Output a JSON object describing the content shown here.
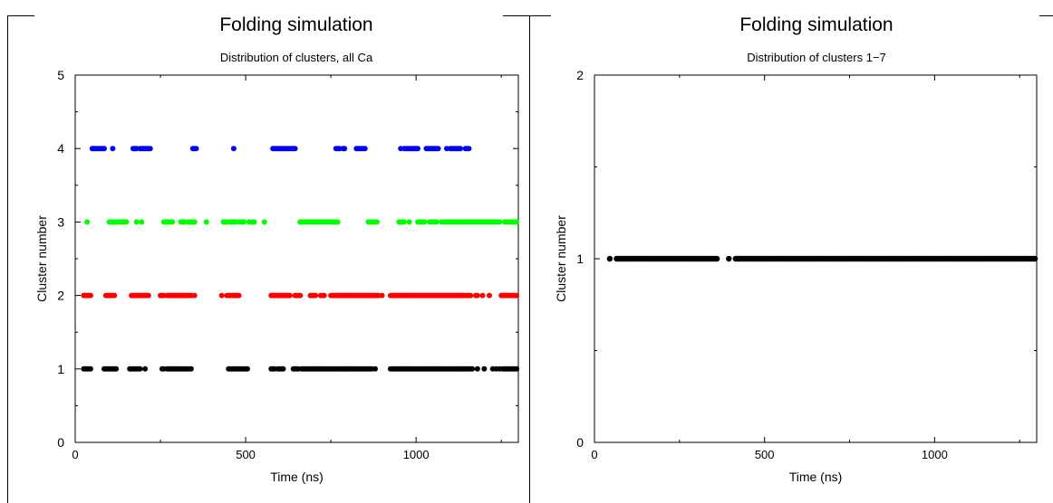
{
  "chart_data": [
    {
      "type": "scatter",
      "title": "Folding simulation",
      "subtitle": "Distribution of clusters, all Ca",
      "xlabel": "Time (ns)",
      "ylabel": "Cluster number",
      "xlim": [
        0,
        1300
      ],
      "ylim": [
        0,
        5
      ],
      "xticks": [
        0,
        500,
        1000
      ],
      "yticks": [
        0,
        1,
        2,
        3,
        4,
        5
      ],
      "grid": false,
      "legend": "none",
      "series": [
        {
          "color": "#000000",
          "y": 1,
          "x": [
            25,
            30,
            35,
            40,
            45,
            85,
            90,
            95,
            100,
            105,
            110,
            115,
            120,
            160,
            165,
            170,
            175,
            180,
            185,
            190,
            205,
            255,
            260,
            270,
            275,
            280,
            285,
            290,
            295,
            300,
            305,
            310,
            315,
            320,
            325,
            330,
            335,
            340,
            450,
            455,
            460,
            465,
            470,
            475,
            480,
            485,
            490,
            495,
            500,
            505,
            575,
            580,
            585,
            595,
            600,
            605,
            610,
            640,
            645,
            650,
            655,
            665,
            670,
            675,
            680,
            685,
            690,
            695,
            700,
            705,
            710,
            715,
            720,
            725,
            730,
            735,
            740,
            745,
            750,
            755,
            760,
            765,
            770,
            775,
            780,
            785,
            790,
            795,
            800,
            805,
            810,
            815,
            820,
            825,
            830,
            835,
            840,
            845,
            850,
            855,
            860,
            865,
            870,
            880,
            925,
            930,
            935,
            940,
            945,
            950,
            955,
            960,
            965,
            970,
            975,
            980,
            985,
            990,
            995,
            1000,
            1005,
            1010,
            1015,
            1020,
            1025,
            1030,
            1035,
            1040,
            1045,
            1050,
            1055,
            1060,
            1065,
            1070,
            1075,
            1080,
            1085,
            1090,
            1095,
            1100,
            1105,
            1110,
            1115,
            1120,
            1125,
            1130,
            1135,
            1140,
            1145,
            1150,
            1155,
            1160,
            1165,
            1180,
            1200,
            1225,
            1235,
            1245,
            1255,
            1260,
            1265,
            1270,
            1275,
            1280,
            1285,
            1290,
            1295
          ]
        },
        {
          "color": "#ff0000",
          "y": 2,
          "x": [
            25,
            30,
            35,
            40,
            45,
            90,
            95,
            100,
            105,
            110,
            115,
            165,
            170,
            175,
            180,
            185,
            190,
            195,
            200,
            205,
            210,
            215,
            250,
            255,
            260,
            270,
            275,
            280,
            285,
            290,
            295,
            300,
            305,
            310,
            315,
            320,
            325,
            330,
            335,
            340,
            350,
            430,
            445,
            450,
            455,
            460,
            465,
            470,
            475,
            480,
            575,
            580,
            585,
            590,
            595,
            600,
            605,
            610,
            615,
            620,
            625,
            630,
            645,
            650,
            655,
            660,
            690,
            695,
            700,
            705,
            720,
            725,
            730,
            750,
            755,
            760,
            765,
            770,
            775,
            780,
            785,
            790,
            795,
            800,
            805,
            810,
            815,
            820,
            825,
            830,
            835,
            840,
            845,
            850,
            855,
            860,
            865,
            870,
            875,
            880,
            885,
            890,
            900,
            925,
            930,
            935,
            940,
            945,
            950,
            955,
            960,
            965,
            970,
            975,
            980,
            985,
            990,
            995,
            1000,
            1005,
            1010,
            1015,
            1020,
            1025,
            1030,
            1035,
            1040,
            1045,
            1050,
            1055,
            1060,
            1065,
            1070,
            1075,
            1080,
            1085,
            1090,
            1095,
            1100,
            1105,
            1110,
            1115,
            1120,
            1125,
            1130,
            1135,
            1140,
            1145,
            1150,
            1155,
            1160,
            1175,
            1180,
            1195,
            1215,
            1250,
            1255,
            1260,
            1265,
            1270,
            1275,
            1280,
            1285,
            1290,
            1295
          ]
        },
        {
          "color": "#00ff00",
          "y": 3,
          "x": [
            35,
            100,
            105,
            110,
            115,
            120,
            125,
            130,
            135,
            140,
            145,
            150,
            180,
            195,
            260,
            265,
            270,
            275,
            280,
            285,
            310,
            315,
            320,
            330,
            335,
            340,
            345,
            350,
            385,
            435,
            440,
            445,
            455,
            460,
            465,
            470,
            480,
            485,
            490,
            495,
            510,
            520,
            525,
            555,
            660,
            665,
            670,
            675,
            680,
            685,
            690,
            695,
            700,
            705,
            710,
            715,
            720,
            725,
            730,
            735,
            740,
            745,
            750,
            755,
            760,
            765,
            770,
            860,
            865,
            870,
            875,
            880,
            885,
            950,
            955,
            960,
            965,
            980,
            1005,
            1010,
            1015,
            1020,
            1025,
            1040,
            1045,
            1050,
            1055,
            1060,
            1075,
            1080,
            1085,
            1090,
            1095,
            1100,
            1105,
            1110,
            1115,
            1120,
            1125,
            1130,
            1135,
            1140,
            1145,
            1150,
            1155,
            1160,
            1165,
            1170,
            1175,
            1180,
            1185,
            1190,
            1195,
            1200,
            1205,
            1210,
            1215,
            1220,
            1225,
            1230,
            1235,
            1240,
            1245,
            1260,
            1265,
            1270,
            1275,
            1280,
            1285,
            1290,
            1295
          ]
        },
        {
          "color": "#0000ff",
          "y": 4,
          "x": [
            50,
            55,
            60,
            65,
            70,
            75,
            80,
            85,
            110,
            170,
            175,
            180,
            190,
            195,
            200,
            205,
            210,
            215,
            220,
            345,
            350,
            355,
            465,
            580,
            585,
            590,
            595,
            600,
            605,
            610,
            615,
            620,
            625,
            630,
            635,
            640,
            645,
            765,
            770,
            775,
            785,
            790,
            825,
            830,
            835,
            840,
            845,
            850,
            955,
            965,
            970,
            975,
            980,
            985,
            990,
            995,
            1000,
            1005,
            1030,
            1035,
            1040,
            1045,
            1050,
            1055,
            1060,
            1065,
            1090,
            1100,
            1105,
            1110,
            1115,
            1120,
            1125,
            1130,
            1145,
            1150,
            1155
          ]
        }
      ]
    },
    {
      "type": "scatter",
      "title": "Folding simulation",
      "subtitle": "Distribution of clusters 1−7",
      "xlabel": "Time (ns)",
      "ylabel": "Cluster number",
      "xlim": [
        0,
        1300
      ],
      "ylim": [
        0,
        2
      ],
      "xticks": [
        0,
        500,
        1000
      ],
      "yticks": [
        0,
        1,
        2
      ],
      "grid": false,
      "legend": "none",
      "series": [
        {
          "color": "#000000",
          "y": 1,
          "x": [
            45,
            65,
            70,
            75,
            80,
            85,
            90,
            95,
            100,
            105,
            110,
            115,
            120,
            125,
            130,
            135,
            140,
            145,
            150,
            155,
            160,
            165,
            170,
            175,
            180,
            185,
            190,
            195,
            200,
            205,
            210,
            215,
            220,
            225,
            230,
            235,
            240,
            245,
            250,
            255,
            260,
            265,
            270,
            275,
            280,
            285,
            290,
            295,
            300,
            305,
            310,
            315,
            320,
            325,
            330,
            335,
            340,
            345,
            350,
            355,
            360,
            395,
            415,
            420,
            425,
            430,
            435,
            440,
            445,
            450,
            455,
            460,
            465,
            470,
            475,
            480,
            485,
            490,
            495,
            500,
            505,
            510,
            515,
            520,
            525,
            530,
            535,
            540,
            545,
            550,
            555,
            560,
            565,
            570,
            575,
            580,
            585,
            590,
            595,
            600,
            605,
            610,
            615,
            620,
            625,
            630,
            635,
            640,
            645,
            650,
            655,
            660,
            665,
            670,
            675,
            680,
            685,
            690,
            695,
            700,
            705,
            710,
            715,
            720,
            725,
            730,
            735,
            740,
            745,
            750,
            755,
            760,
            765,
            770,
            775,
            780,
            785,
            790,
            795,
            800,
            805,
            810,
            815,
            820,
            825,
            830,
            835,
            840,
            845,
            850,
            855,
            860,
            865,
            870,
            875,
            880,
            885,
            890,
            895,
            900,
            905,
            910,
            915,
            920,
            925,
            930,
            935,
            940,
            945,
            950,
            955,
            960,
            965,
            970,
            975,
            980,
            985,
            990,
            995,
            1000,
            1005,
            1010,
            1015,
            1020,
            1025,
            1030,
            1035,
            1040,
            1045,
            1050,
            1055,
            1060,
            1065,
            1070,
            1075,
            1080,
            1085,
            1090,
            1095,
            1100,
            1105,
            1110,
            1115,
            1120,
            1125,
            1130,
            1135,
            1140,
            1145,
            1150,
            1155,
            1160,
            1165,
            1170,
            1175,
            1180,
            1185,
            1190,
            1195,
            1200,
            1205,
            1210,
            1215,
            1220,
            1225,
            1230,
            1235,
            1240,
            1245,
            1250,
            1255,
            1260,
            1265,
            1270,
            1275,
            1280,
            1285,
            1290,
            1295
          ]
        }
      ]
    }
  ]
}
